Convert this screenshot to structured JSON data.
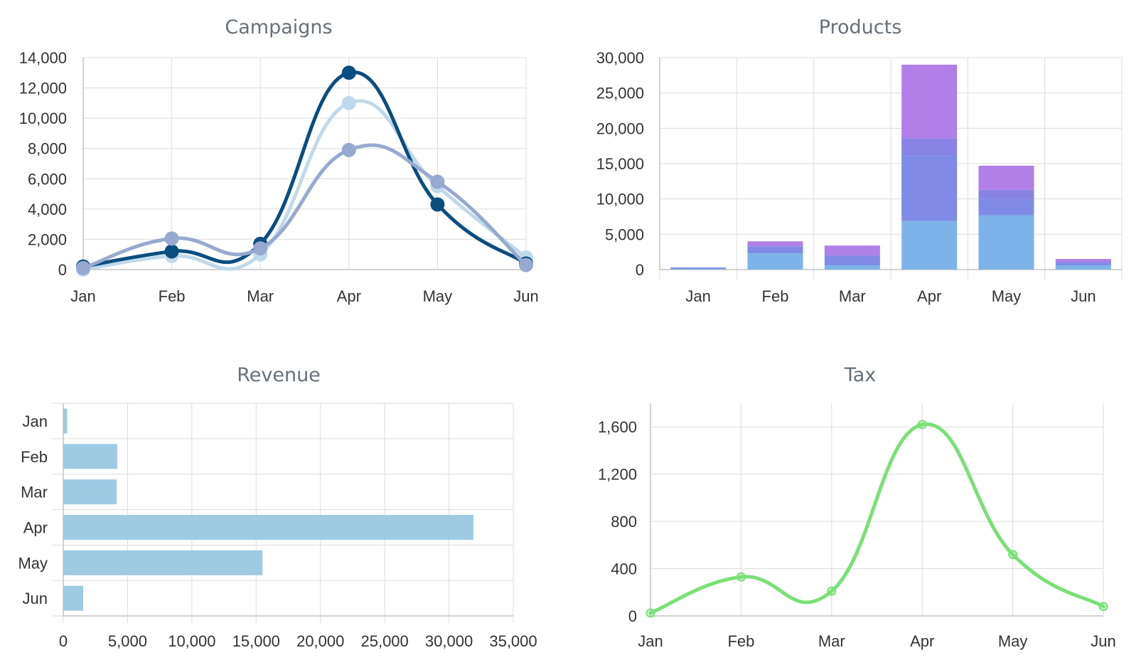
{
  "chart_data": [
    {
      "type": "line",
      "title": "Campaigns",
      "categories": [
        "Jan",
        "Feb",
        "Mar",
        "Apr",
        "May",
        "Jun"
      ],
      "ylim": [
        0,
        14000
      ],
      "yticks": [
        0,
        2000,
        4000,
        6000,
        8000,
        10000,
        12000,
        14000
      ],
      "ytick_labels": [
        "0",
        "2,000",
        "4,000",
        "6,000",
        "8,000",
        "10,000",
        "12,000",
        "14,000"
      ],
      "grid": true,
      "series": [
        {
          "color": "#bfd9ec",
          "values": [
            0,
            900,
            1000,
            11000,
            5500,
            800
          ]
        },
        {
          "color": "#0a4d80",
          "values": [
            200,
            1200,
            1700,
            13000,
            4300,
            400
          ]
        },
        {
          "color": "#97a9d0",
          "values": [
            100,
            2050,
            1400,
            7900,
            5800,
            300
          ]
        }
      ]
    },
    {
      "type": "bar",
      "stacked": true,
      "title": "Products",
      "categories": [
        "Jan",
        "Feb",
        "Mar",
        "Apr",
        "May",
        "Jun"
      ],
      "ylim": [
        0,
        30000
      ],
      "yticks": [
        0,
        5000,
        10000,
        15000,
        20000,
        25000,
        30000
      ],
      "ytick_labels": [
        "0",
        "5,000",
        "10,000",
        "15,000",
        "20,000",
        "25,000",
        "30,000"
      ],
      "grid": true,
      "series": [
        {
          "color": "#7db3e8",
          "values": [
            150,
            2300,
            600,
            6900,
            7700,
            600
          ]
        },
        {
          "color": "#7f8be6",
          "values": [
            150,
            1000,
            1400,
            9300,
            2300,
            300
          ]
        },
        {
          "color": "#8a83e6",
          "values": [
            0,
            0,
            0,
            2400,
            1300,
            200
          ]
        },
        {
          "color": "#b07fe8",
          "values": [
            0,
            700,
            1400,
            10400,
            3400,
            400
          ]
        }
      ]
    },
    {
      "type": "bar",
      "orientation": "horizontal",
      "title": "Revenue",
      "categories": [
        "Jan",
        "Feb",
        "Mar",
        "Apr",
        "May",
        "Jun"
      ],
      "xlim": [
        0,
        35000
      ],
      "xticks": [
        0,
        5000,
        10000,
        15000,
        20000,
        25000,
        30000,
        35000
      ],
      "xtick_labels": [
        "0",
        "5,000",
        "10,000",
        "15,000",
        "20,000",
        "25,000",
        "30,000",
        "35,000"
      ],
      "grid": true,
      "color": "#9ecae3",
      "values": [
        300,
        4200,
        4150,
        31900,
        15500,
        1550
      ]
    },
    {
      "type": "line",
      "title": "Tax",
      "categories": [
        "Jan",
        "Feb",
        "Mar",
        "Apr",
        "May",
        "Jun"
      ],
      "ylim": [
        0,
        1800
      ],
      "yticks": [
        0,
        400,
        800,
        1200,
        1600
      ],
      "ytick_labels": [
        "0",
        "400",
        "800",
        "1,200",
        "1,600"
      ],
      "grid": true,
      "color": "#79e075",
      "values": [
        25,
        330,
        210,
        1620,
        520,
        80
      ]
    }
  ]
}
